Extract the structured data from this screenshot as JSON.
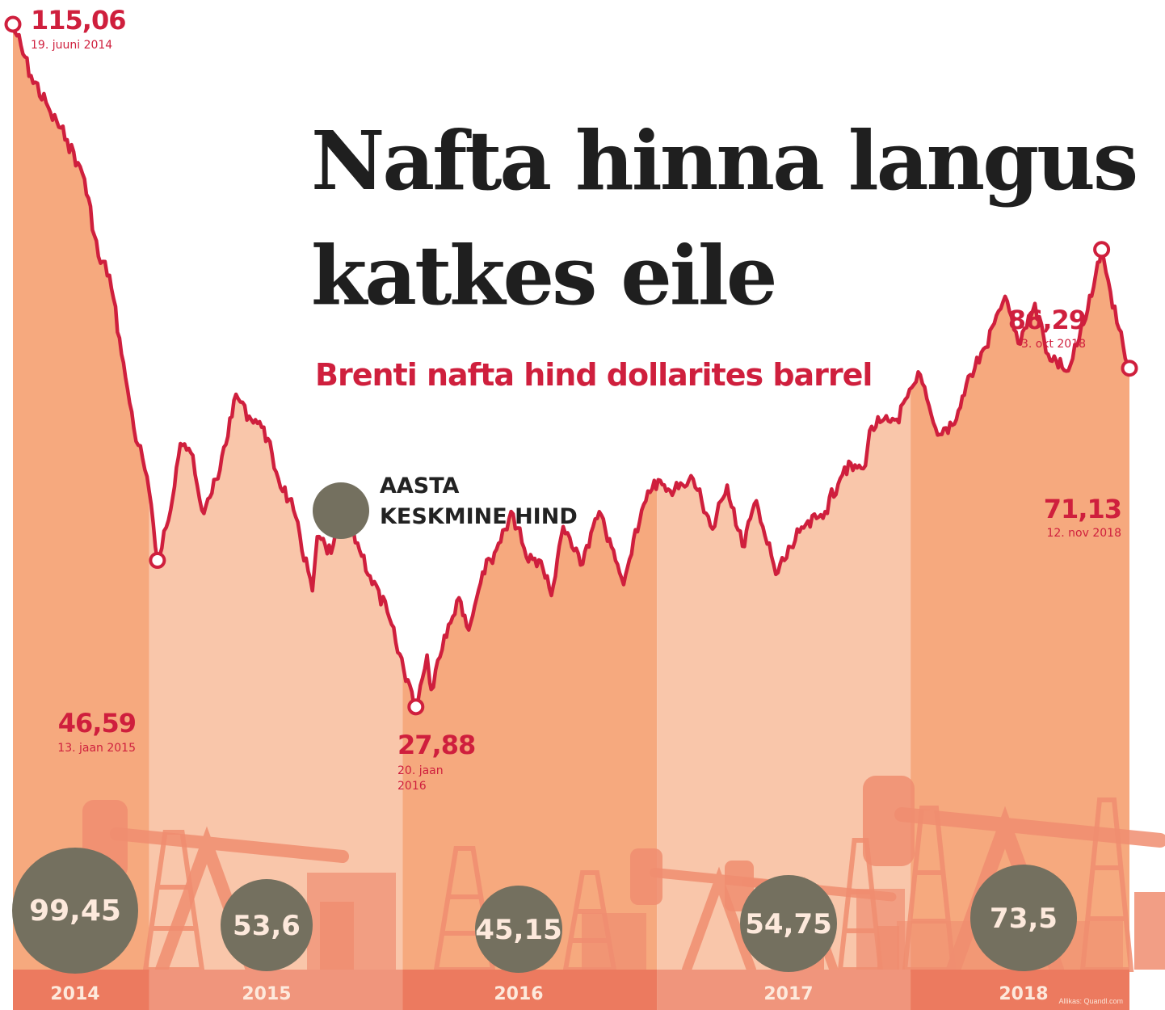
{
  "title": "Nafta hinna langus katkes eile",
  "subtitle": "Brenti nafta hind dollarites barrel",
  "legend": {
    "label": "AASTA KESKMINE HIND",
    "color": "#74705f"
  },
  "source": "Allikas: Quandl.com",
  "colors": {
    "line": "#cf1f3d",
    "area_dark": "#f6a97e",
    "area_light": "#f9c6aa",
    "strip_dark": "#ec7a5f",
    "strip_light": "#f0957c",
    "silhouette": "#f08d70",
    "average_circle": "#74705f"
  },
  "chart_data": {
    "type": "area",
    "xlabel": "",
    "ylabel": "",
    "ylim": [
      0,
      115.06
    ],
    "xlim": [
      "2014-06-19",
      "2018-11-12"
    ],
    "series": [
      {
        "points": [
          [
            "2014-06-19",
            115.06
          ],
          [
            "2014-07-15",
            108.5
          ],
          [
            "2014-08-12",
            103.8
          ],
          [
            "2014-09-05",
            100.3
          ],
          [
            "2014-09-30",
            95.3
          ],
          [
            "2014-10-20",
            85.4
          ],
          [
            "2014-11-05",
            83.0
          ],
          [
            "2014-11-28",
            70.0
          ],
          [
            "2014-12-10",
            63.5
          ],
          [
            "2014-12-29",
            57.3
          ],
          [
            "2015-01-13",
            46.59
          ],
          [
            "2015-02-01",
            53.0
          ],
          [
            "2015-02-15",
            61.5
          ],
          [
            "2015-03-05",
            60.0
          ],
          [
            "2015-03-18",
            53.0
          ],
          [
            "2015-04-10",
            57.0
          ],
          [
            "2015-05-06",
            67.8
          ],
          [
            "2015-05-25",
            65.0
          ],
          [
            "2015-06-15",
            63.6
          ],
          [
            "2015-07-06",
            57.0
          ],
          [
            "2015-07-28",
            53.0
          ],
          [
            "2015-08-24",
            42.7
          ],
          [
            "2015-08-31",
            49.6
          ],
          [
            "2015-09-20",
            47.5
          ],
          [
            "2015-10-09",
            52.8
          ],
          [
            "2015-10-28",
            48.8
          ],
          [
            "2015-11-15",
            44.6
          ],
          [
            "2015-12-10",
            40.0
          ],
          [
            "2015-12-22",
            36.1
          ],
          [
            "2016-01-20",
            27.88
          ],
          [
            "2016-02-05",
            34.5
          ],
          [
            "2016-02-11",
            30.1
          ],
          [
            "2016-03-01",
            37.0
          ],
          [
            "2016-03-22",
            41.8
          ],
          [
            "2016-04-05",
            37.7
          ],
          [
            "2016-04-25",
            45.1
          ],
          [
            "2016-05-15",
            48.0
          ],
          [
            "2016-06-08",
            52.5
          ],
          [
            "2016-06-27",
            47.0
          ],
          [
            "2016-07-18",
            46.5
          ],
          [
            "2016-08-02",
            42.1
          ],
          [
            "2016-08-19",
            50.9
          ],
          [
            "2016-09-13",
            46.0
          ],
          [
            "2016-10-10",
            52.8
          ],
          [
            "2016-11-14",
            43.5
          ],
          [
            "2016-12-01",
            50.5
          ],
          [
            "2016-12-28",
            56.8
          ],
          [
            "2017-01-20",
            55.5
          ],
          [
            "2017-02-22",
            57.0
          ],
          [
            "2017-03-22",
            50.6
          ],
          [
            "2017-04-12",
            56.2
          ],
          [
            "2017-05-04",
            48.4
          ],
          [
            "2017-05-24",
            54.2
          ],
          [
            "2017-06-21",
            44.8
          ],
          [
            "2017-07-25",
            50.2
          ],
          [
            "2017-08-31",
            52.8
          ],
          [
            "2017-09-28",
            58.5
          ],
          [
            "2017-10-25",
            58.3
          ],
          [
            "2017-11-06",
            63.7
          ],
          [
            "2017-12-12",
            64.6
          ],
          [
            "2018-01-15",
            70.3
          ],
          [
            "2018-02-09",
            62.6
          ],
          [
            "2018-03-05",
            64.0
          ],
          [
            "2018-03-28",
            70.3
          ],
          [
            "2018-04-19",
            73.8
          ],
          [
            "2018-05-17",
            80.3
          ],
          [
            "2018-06-05",
            74.3
          ],
          [
            "2018-06-29",
            79.4
          ],
          [
            "2018-07-18",
            72.9
          ],
          [
            "2018-08-16",
            70.8
          ],
          [
            "2018-09-10",
            77.4
          ],
          [
            "2018-10-03",
            86.29
          ],
          [
            "2018-10-25",
            76.9
          ],
          [
            "2018-11-12",
            71.13
          ]
        ]
      }
    ],
    "annotations": [
      {
        "date": "2014-06-19",
        "value": "115,06",
        "label": "19. juuni 2014"
      },
      {
        "date": "2015-01-13",
        "value": "46,59",
        "label": "13. jaan 2015"
      },
      {
        "date": "2016-01-20",
        "value": "27,88",
        "label": "20. jaan 2016"
      },
      {
        "date": "2018-10-03",
        "value": "86,29",
        "label": "3. okt 2018"
      },
      {
        "date": "2018-11-12",
        "value": "71,13",
        "label": "12. nov 2018"
      }
    ],
    "yearly_averages": [
      {
        "year": "2014",
        "value": "99,45"
      },
      {
        "year": "2015",
        "value": "53,6"
      },
      {
        "year": "2016",
        "value": "45,15"
      },
      {
        "year": "2017",
        "value": "54,75"
      },
      {
        "year": "2018",
        "value": "73,5"
      }
    ]
  }
}
